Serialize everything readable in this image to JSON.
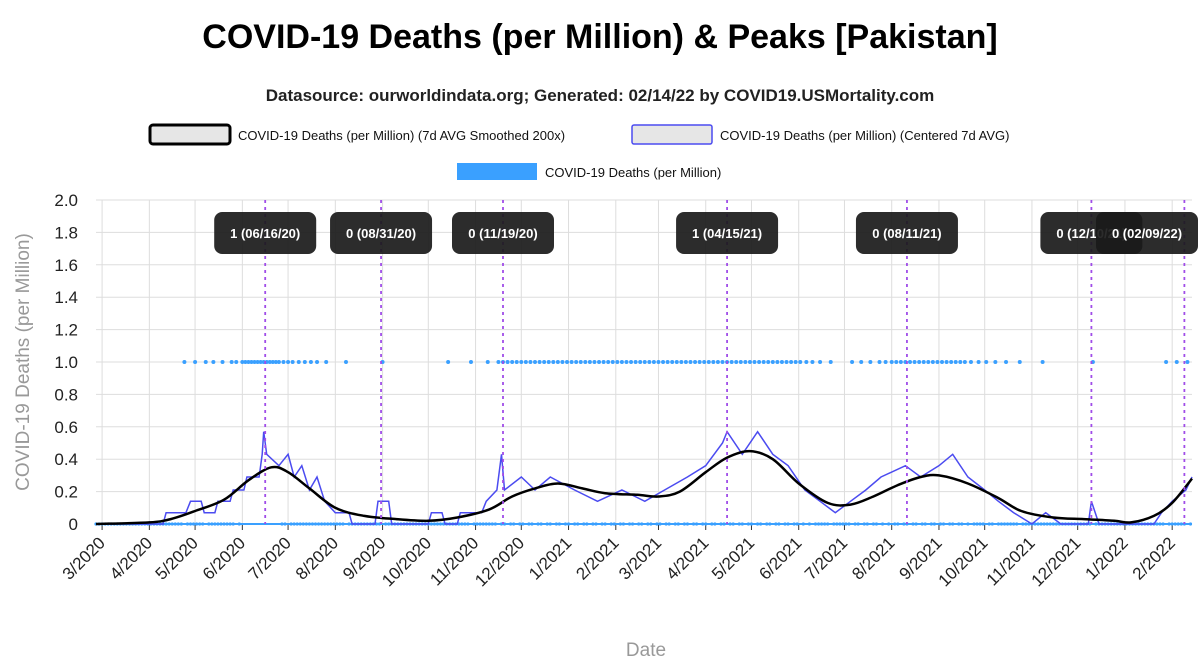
{
  "chart_data": {
    "type": "line",
    "title": "COVID-19 Deaths (per Million) & Peaks [Pakistan]",
    "subtitle": "Datasource: ourworldindata.org; Generated: 02/14/22 by COVID19.USMortality.com",
    "xlabel": "Date",
    "ylabel": "COVID-19 Deaths (per Million)",
    "ylim": [
      0,
      2.0
    ],
    "xlim": [
      "2020-02-26",
      "2022-02-14"
    ],
    "y_ticks": [
      "0",
      "0.2",
      "0.4",
      "0.6",
      "0.8",
      "1.0",
      "1.2",
      "1.4",
      "1.6",
      "1.8",
      "2.0"
    ],
    "x_ticks": [
      "3/2020",
      "4/2020",
      "5/2020",
      "6/2020",
      "7/2020",
      "8/2020",
      "9/2020",
      "10/2020",
      "11/2020",
      "12/2020",
      "1/2021",
      "2/2021",
      "3/2021",
      "4/2021",
      "5/2021",
      "6/2021",
      "7/2021",
      "8/2021",
      "9/2021",
      "10/2021",
      "11/2021",
      "12/2021",
      "1/2022",
      "2/2022"
    ],
    "grid": true,
    "legend_position": "top-center",
    "legend": [
      {
        "label": "COVID-19 Deaths (per Million) (7d AVG Smoothed 200x)",
        "color": "#000000",
        "fill": "#e6e6e6"
      },
      {
        "label": "COVID-19 Deaths (per Million) (Centered 7d AVG)",
        "color": "#4b4bf0",
        "fill": "#e6e6e6"
      },
      {
        "label": "COVID-19 Deaths (per Million)",
        "color": "#3aa0ff"
      }
    ],
    "peaks": [
      {
        "date": "2020-06-16",
        "label": "1 (06/16/20)"
      },
      {
        "date": "2020-08-31",
        "label": "0 (08/31/20)"
      },
      {
        "date": "2020-11-19",
        "label": "0 (11/19/20)"
      },
      {
        "date": "2021-04-15",
        "label": "1 (04/15/21)"
      },
      {
        "date": "2021-08-11",
        "label": "0 (08/11/21)"
      },
      {
        "date": "2021-12-10",
        "label": "0 (12/10/21)"
      },
      {
        "date": "2022-02-09",
        "label": "0 (02/09/22)"
      }
    ],
    "series": [
      {
        "name": "COVID-19 Deaths (per Million) (7d AVG Smoothed 200x)",
        "color": "#000000",
        "points": [
          [
            "2020-02-26",
            0
          ],
          [
            "2020-04-01",
            0.01
          ],
          [
            "2020-04-15",
            0.03
          ],
          [
            "2020-05-01",
            0.08
          ],
          [
            "2020-05-20",
            0.15
          ],
          [
            "2020-06-05",
            0.27
          ],
          [
            "2020-06-20",
            0.35
          ],
          [
            "2020-07-01",
            0.32
          ],
          [
            "2020-07-15",
            0.22
          ],
          [
            "2020-08-01",
            0.1
          ],
          [
            "2020-08-20",
            0.05
          ],
          [
            "2020-09-10",
            0.03
          ],
          [
            "2020-10-01",
            0.02
          ],
          [
            "2020-10-20",
            0.04
          ],
          [
            "2020-11-10",
            0.09
          ],
          [
            "2020-11-25",
            0.17
          ],
          [
            "2020-12-10",
            0.22
          ],
          [
            "2020-12-25",
            0.25
          ],
          [
            "2021-01-10",
            0.22
          ],
          [
            "2021-01-25",
            0.19
          ],
          [
            "2021-02-15",
            0.18
          ],
          [
            "2021-03-01",
            0.17
          ],
          [
            "2021-03-15",
            0.2
          ],
          [
            "2021-04-01",
            0.32
          ],
          [
            "2021-04-15",
            0.41
          ],
          [
            "2021-04-30",
            0.45
          ],
          [
            "2021-05-15",
            0.4
          ],
          [
            "2021-06-01",
            0.25
          ],
          [
            "2021-06-20",
            0.13
          ],
          [
            "2021-07-05",
            0.12
          ],
          [
            "2021-07-20",
            0.17
          ],
          [
            "2021-08-05",
            0.24
          ],
          [
            "2021-08-20",
            0.29
          ],
          [
            "2021-09-01",
            0.3
          ],
          [
            "2021-09-20",
            0.25
          ],
          [
            "2021-10-10",
            0.16
          ],
          [
            "2021-10-25",
            0.08
          ],
          [
            "2021-11-15",
            0.04
          ],
          [
            "2021-12-05",
            0.03
          ],
          [
            "2021-12-25",
            0.02
          ],
          [
            "2022-01-05",
            0.01
          ],
          [
            "2022-01-20",
            0.05
          ],
          [
            "2022-02-01",
            0.13
          ],
          [
            "2022-02-14",
            0.28
          ]
        ]
      },
      {
        "name": "COVID-19 Deaths (per Million) (Centered 7d AVG)",
        "color": "#4b4bf0",
        "points": [
          [
            "2020-02-26",
            0
          ],
          [
            "2020-04-10",
            0
          ],
          [
            "2020-04-12",
            0.07
          ],
          [
            "2020-04-25",
            0.07
          ],
          [
            "2020-04-28",
            0.14
          ],
          [
            "2020-05-05",
            0.14
          ],
          [
            "2020-05-07",
            0.07
          ],
          [
            "2020-05-14",
            0.07
          ],
          [
            "2020-05-16",
            0.14
          ],
          [
            "2020-05-24",
            0.14
          ],
          [
            "2020-05-26",
            0.21
          ],
          [
            "2020-06-02",
            0.21
          ],
          [
            "2020-06-04",
            0.29
          ],
          [
            "2020-06-12",
            0.29
          ],
          [
            "2020-06-14",
            0.43
          ],
          [
            "2020-06-15",
            0.57
          ],
          [
            "2020-06-17",
            0.43
          ],
          [
            "2020-06-25",
            0.36
          ],
          [
            "2020-07-01",
            0.43
          ],
          [
            "2020-07-05",
            0.29
          ],
          [
            "2020-07-10",
            0.36
          ],
          [
            "2020-07-15",
            0.21
          ],
          [
            "2020-07-20",
            0.29
          ],
          [
            "2020-07-25",
            0.14
          ],
          [
            "2020-08-01",
            0.07
          ],
          [
            "2020-08-10",
            0.07
          ],
          [
            "2020-08-12",
            0
          ],
          [
            "2020-08-27",
            0
          ],
          [
            "2020-08-29",
            0.14
          ],
          [
            "2020-09-05",
            0.14
          ],
          [
            "2020-09-07",
            0
          ],
          [
            "2020-10-01",
            0
          ],
          [
            "2020-10-03",
            0.07
          ],
          [
            "2020-10-10",
            0.07
          ],
          [
            "2020-10-12",
            0
          ],
          [
            "2020-10-20",
            0
          ],
          [
            "2020-10-22",
            0.07
          ],
          [
            "2020-11-05",
            0.07
          ],
          [
            "2020-11-08",
            0.14
          ],
          [
            "2020-11-15",
            0.21
          ],
          [
            "2020-11-18",
            0.43
          ],
          [
            "2020-11-20",
            0.21
          ],
          [
            "2020-12-01",
            0.29
          ],
          [
            "2020-12-10",
            0.21
          ],
          [
            "2020-12-20",
            0.29
          ],
          [
            "2021-01-05",
            0.21
          ],
          [
            "2021-01-20",
            0.14
          ],
          [
            "2021-02-05",
            0.21
          ],
          [
            "2021-02-20",
            0.14
          ],
          [
            "2021-03-05",
            0.21
          ],
          [
            "2021-03-20",
            0.29
          ],
          [
            "2021-04-01",
            0.36
          ],
          [
            "2021-04-12",
            0.5
          ],
          [
            "2021-04-15",
            0.57
          ],
          [
            "2021-04-25",
            0.43
          ],
          [
            "2021-05-05",
            0.57
          ],
          [
            "2021-05-15",
            0.43
          ],
          [
            "2021-05-25",
            0.36
          ],
          [
            "2021-06-05",
            0.21
          ],
          [
            "2021-06-15",
            0.14
          ],
          [
            "2021-06-25",
            0.07
          ],
          [
            "2021-07-05",
            0.14
          ],
          [
            "2021-07-15",
            0.21
          ],
          [
            "2021-07-25",
            0.29
          ],
          [
            "2021-08-10",
            0.36
          ],
          [
            "2021-08-20",
            0.29
          ],
          [
            "2021-09-01",
            0.36
          ],
          [
            "2021-09-10",
            0.43
          ],
          [
            "2021-09-20",
            0.29
          ],
          [
            "2021-10-01",
            0.21
          ],
          [
            "2021-10-10",
            0.14
          ],
          [
            "2021-10-20",
            0.07
          ],
          [
            "2021-11-01",
            0
          ],
          [
            "2021-11-10",
            0.07
          ],
          [
            "2021-11-20",
            0
          ],
          [
            "2021-12-08",
            0
          ],
          [
            "2021-12-10",
            0.14
          ],
          [
            "2021-12-15",
            0
          ],
          [
            "2022-01-20",
            0
          ],
          [
            "2022-01-25",
            0.07
          ],
          [
            "2022-02-01",
            0.14
          ],
          [
            "2022-02-10",
            0.21
          ],
          [
            "2022-02-14",
            0.29
          ]
        ]
      },
      {
        "name": "COVID-19 Deaths (per Million)",
        "color": "#3aa0ff",
        "type": "scatter",
        "value_one_dates": [
          "2020-04-24",
          "2020-05-01",
          "2020-05-08",
          "2020-05-13",
          "2020-05-19",
          "2020-05-25",
          "2020-05-28",
          "2020-06-01",
          "2020-06-03",
          "2020-06-05",
          "2020-06-07",
          "2020-06-09",
          "2020-06-11",
          "2020-06-13",
          "2020-06-15",
          "2020-06-17",
          "2020-06-19",
          "2020-06-21",
          "2020-06-23",
          "2020-06-25",
          "2020-06-28",
          "2020-07-01",
          "2020-07-04",
          "2020-07-08",
          "2020-07-12",
          "2020-07-16",
          "2020-07-20",
          "2020-07-26",
          "2020-08-08",
          "2020-09-01",
          "2020-10-14",
          "2020-10-29",
          "2020-11-09",
          "2020-11-16",
          "2020-11-19",
          "2020-11-22",
          "2020-11-25",
          "2020-11-28",
          "2020-12-01",
          "2020-12-04",
          "2020-12-07",
          "2020-12-10",
          "2020-12-13",
          "2020-12-16",
          "2020-12-19",
          "2020-12-22",
          "2020-12-25",
          "2020-12-28",
          "2020-12-31",
          "2021-01-03",
          "2021-01-06",
          "2021-01-09",
          "2021-01-12",
          "2021-01-15",
          "2021-01-18",
          "2021-01-21",
          "2021-01-24",
          "2021-01-27",
          "2021-01-30",
          "2021-02-02",
          "2021-02-05",
          "2021-02-08",
          "2021-02-11",
          "2021-02-14",
          "2021-02-17",
          "2021-02-20",
          "2021-02-23",
          "2021-02-26",
          "2021-03-01",
          "2021-03-04",
          "2021-03-07",
          "2021-03-10",
          "2021-03-13",
          "2021-03-16",
          "2021-03-19",
          "2021-03-22",
          "2021-03-25",
          "2021-03-28",
          "2021-03-31",
          "2021-04-03",
          "2021-04-06",
          "2021-04-09",
          "2021-04-12",
          "2021-04-15",
          "2021-04-18",
          "2021-04-21",
          "2021-04-24",
          "2021-04-27",
          "2021-04-30",
          "2021-05-03",
          "2021-05-06",
          "2021-05-09",
          "2021-05-12",
          "2021-05-15",
          "2021-05-18",
          "2021-05-21",
          "2021-05-24",
          "2021-05-27",
          "2021-05-30",
          "2021-06-02",
          "2021-06-06",
          "2021-06-10",
          "2021-06-15",
          "2021-06-22",
          "2021-07-06",
          "2021-07-12",
          "2021-07-18",
          "2021-07-24",
          "2021-07-28",
          "2021-08-01",
          "2021-08-04",
          "2021-08-07",
          "2021-08-10",
          "2021-08-13",
          "2021-08-16",
          "2021-08-19",
          "2021-08-22",
          "2021-08-25",
          "2021-08-28",
          "2021-08-31",
          "2021-09-03",
          "2021-09-06",
          "2021-09-09",
          "2021-09-12",
          "2021-09-15",
          "2021-09-18",
          "2021-09-22",
          "2021-09-27",
          "2021-10-02",
          "2021-10-08",
          "2021-10-15",
          "2021-10-24",
          "2021-11-08",
          "2021-12-11",
          "2022-01-28",
          "2022-02-04",
          "2022-02-11"
        ]
      }
    ]
  }
}
